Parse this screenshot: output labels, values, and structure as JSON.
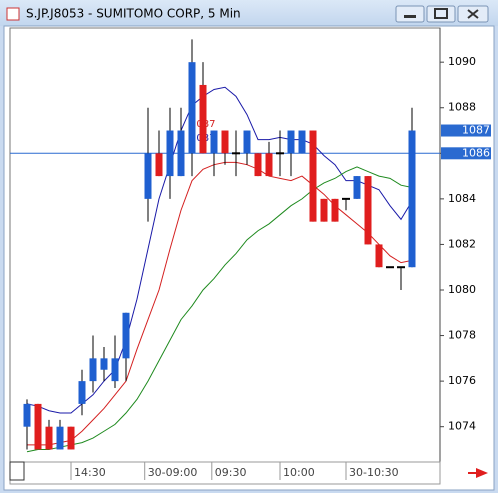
{
  "window_title": "S.JP.J8053 - SUMITOMO CORP, 5 Min",
  "chart_data": {
    "type": "candlestick",
    "open": [
      1074,
      1075,
      1074,
      1073,
      1074,
      1075,
      1076,
      1076.5,
      1076,
      1077,
      null,
      1084,
      1086,
      1085,
      1085,
      1086,
      1089,
      1086,
      1087,
      1086,
      1086,
      1086,
      1086,
      1086,
      1086,
      1086,
      1087,
      1084,
      1084,
      1084,
      1084,
      1085,
      1082,
      1081,
      1081,
      1081
    ],
    "high": [
      1075.2,
      1075,
      1074.3,
      1074.3,
      1074,
      1076.5,
      1078,
      1077.5,
      1078,
      1079,
      null,
      1088,
      1087,
      1088,
      1088,
      1091,
      1090,
      1087,
      1087,
      1087,
      1087,
      1086,
      1086.5,
      1087,
      1087,
      1087,
      1087,
      1084,
      1084,
      1084,
      1085,
      1085,
      1082,
      1081,
      1081,
      1088
    ],
    "low": [
      1073,
      1073,
      1073,
      1073,
      1073,
      1074.5,
      1075.5,
      1076,
      1075.7,
      1076,
      null,
      1083,
      1085,
      1084,
      1085,
      1085,
      1086,
      1085,
      1085.5,
      1085,
      1085.5,
      1085,
      1085,
      1085,
      1085,
      1086,
      1083,
      1083,
      1083,
      1083.5,
      1084,
      1082,
      1081,
      1081,
      1080,
      1081
    ],
    "close": [
      1075,
      1073,
      1073,
      1074,
      1073,
      1076,
      1077,
      1077,
      1077,
      1079,
      null,
      1086,
      1085,
      1087,
      1087,
      1090,
      1086,
      1087,
      1086,
      1086,
      1087,
      1085,
      1085,
      1086,
      1087,
      1087,
      1083,
      1083,
      1083,
      1084,
      1085,
      1082,
      1081,
      1081,
      1081,
      1087
    ],
    "up_color": "#1f5fd0",
    "down_color": "#e01e1e",
    "series": [
      {
        "color": "#1a1aa8",
        "values": [
          1075,
          1074.9,
          1074.7,
          1074.6,
          1074.6,
          1075,
          1075.4,
          1076,
          1076.5,
          1077.8,
          1079.6,
          1081.8,
          1084,
          1085.5,
          1087,
          1088.1,
          1088.5,
          1088.8,
          1088.9,
          1088.5,
          1087.7,
          1086.6,
          1086.6,
          1086.7,
          1086.6,
          1086.6,
          1086.4,
          1085.9,
          1085.5,
          1084.8,
          1084.8,
          1084.6,
          1084.4,
          1083.7,
          1083.1,
          1083.9
        ]
      },
      {
        "color": "#d42020",
        "values": [
          1073.2,
          1073.2,
          1073.2,
          1073.3,
          1073.4,
          1073.8,
          1074.3,
          1074.8,
          1075.4,
          1076,
          1077.4,
          1078.7,
          1080,
          1081.8,
          1083.5,
          1084.8,
          1085.3,
          1085.5,
          1085.6,
          1085.6,
          1085.5,
          1085.3,
          1085,
          1084.9,
          1084.8,
          1085,
          1084.6,
          1084.2,
          1083.7,
          1083.3,
          1082.9,
          1082.5,
          1082,
          1081.5,
          1081.2,
          1081.3
        ]
      },
      {
        "color": "#1e8a1e",
        "values": [
          1072.9,
          1073,
          1073,
          1073.1,
          1073.2,
          1073.3,
          1073.5,
          1073.8,
          1074.1,
          1074.6,
          1075.2,
          1076,
          1076.9,
          1077.8,
          1078.7,
          1079.3,
          1080,
          1080.5,
          1081.1,
          1081.6,
          1082.2,
          1082.6,
          1082.9,
          1083.3,
          1083.7,
          1084,
          1084.4,
          1084.7,
          1084.9,
          1085.2,
          1085.4,
          1085.2,
          1085,
          1084.9,
          1084.6,
          1084.5
        ]
      }
    ],
    "ylim": [
      1072.45,
      1091.5
    ],
    "yticks": [
      1074,
      1076,
      1078,
      1080,
      1082,
      1084,
      1086,
      1088,
      1090
    ],
    "xticks": [
      {
        "value": 4,
        "label": "14:30"
      },
      {
        "value": 10.7,
        "label": "30-09:00"
      },
      {
        "value": 16.8,
        "label": "09:30"
      },
      {
        "value": 23,
        "label": "10:00"
      },
      {
        "value": 29,
        "label": "30-10:30"
      }
    ],
    "price_markers": [
      1087,
      1086
    ],
    "price_line": 1086,
    "annotations": [
      "1087",
      "1087"
    ]
  }
}
